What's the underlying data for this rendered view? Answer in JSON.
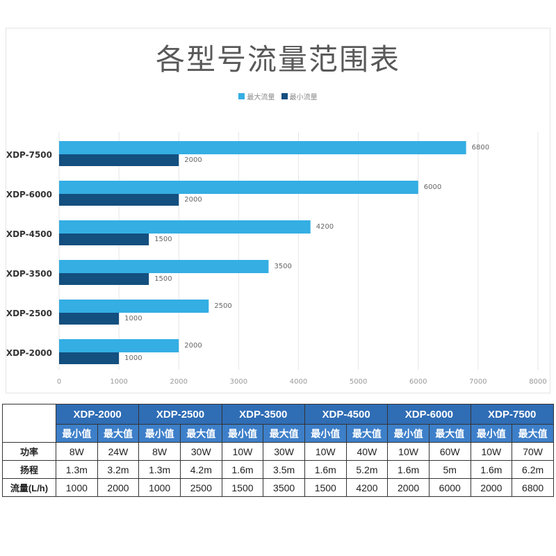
{
  "chart_data": {
    "type": "bar",
    "orientation": "horizontal",
    "title": "各型号流量范围表",
    "categories": [
      "XDP-7500",
      "XDP-6000",
      "XDP-4500",
      "XDP-3500",
      "XDP-2500",
      "XDP-2000"
    ],
    "series": [
      {
        "name": "最大流量",
        "color": "#34aee3",
        "values": [
          6800,
          6000,
          4200,
          3500,
          2500,
          2000
        ]
      },
      {
        "name": "最小流量",
        "color": "#134f7f",
        "values": [
          2000,
          2000,
          1500,
          1500,
          1000,
          1000
        ]
      }
    ],
    "xlim": [
      0,
      8000
    ],
    "xticks": [
      "0",
      "1000",
      "2000",
      "3000",
      "4000",
      "5000",
      "6000",
      "7000",
      "8000"
    ],
    "grid": true,
    "legend": "top-center"
  },
  "table": {
    "models": [
      "XDP-2000",
      "XDP-2500",
      "XDP-3500",
      "XDP-4500",
      "XDP-6000",
      "XDP-7500"
    ],
    "min_label": "最小值",
    "max_label": "最大值",
    "rows": [
      {
        "label": "功率",
        "values": [
          "8W",
          "24W",
          "8W",
          "30W",
          "10W",
          "30W",
          "10W",
          "40W",
          "10W",
          "60W",
          "10W",
          "70W"
        ]
      },
      {
        "label": "扬程",
        "values": [
          "1.3m",
          "3.2m",
          "1.3m",
          "4.2m",
          "1.6m",
          "3.5m",
          "1.6m",
          "5.2m",
          "1.6m",
          "5m",
          "1.6m",
          "6.2m"
        ]
      },
      {
        "label": "流量(L/h)",
        "values": [
          "1000",
          "2000",
          "1000",
          "2500",
          "1500",
          "3500",
          "1500",
          "4200",
          "2000",
          "6000",
          "2000",
          "6800"
        ]
      }
    ]
  }
}
